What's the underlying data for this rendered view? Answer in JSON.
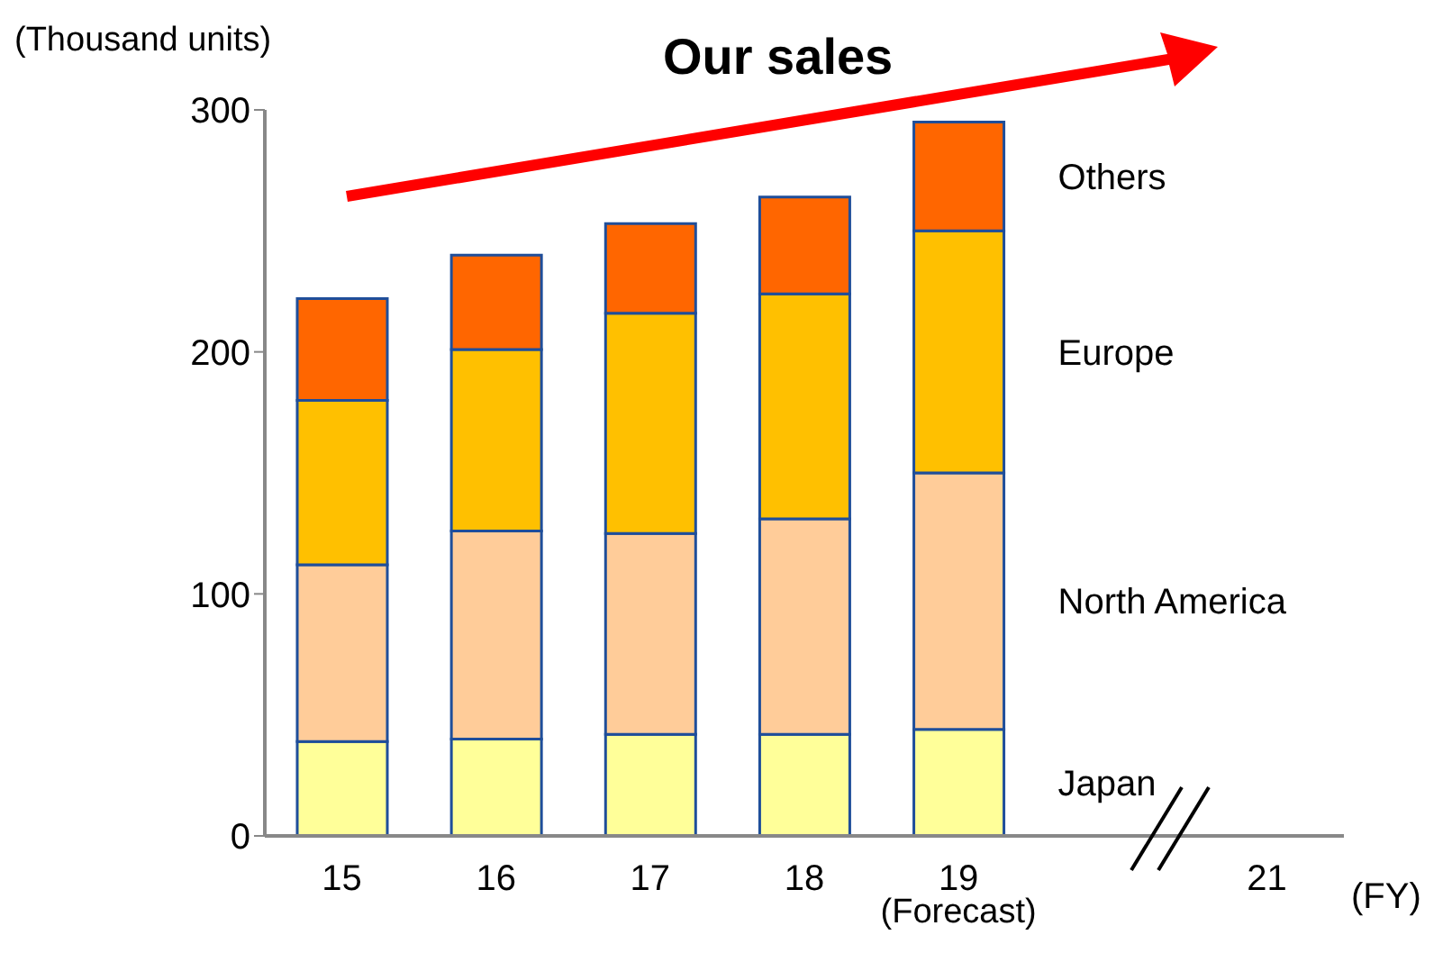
{
  "chart_data": {
    "type": "bar",
    "title": "Our sales",
    "ylabel": "(Thousand units)",
    "xlabel": "(FY)",
    "stacked": true,
    "categories": [
      "15",
      "16",
      "17",
      "18",
      "19",
      null,
      "21"
    ],
    "series": [
      {
        "name": "Japan",
        "color": "#ffff99",
        "values": [
          39,
          40,
          42,
          42,
          44,
          null,
          null
        ]
      },
      {
        "name": "North America",
        "color": "#ffcc99",
        "values": [
          73,
          86,
          83,
          89,
          106,
          null,
          null
        ]
      },
      {
        "name": "Europe",
        "color": "#ffc000",
        "values": [
          68,
          75,
          91,
          93,
          100,
          null,
          null
        ]
      },
      {
        "name": "Others",
        "color": "#ff6600",
        "values": [
          42,
          39,
          37,
          40,
          45,
          null,
          null
        ]
      }
    ],
    "ylim": [
      0,
      300
    ],
    "yticks": [
      0,
      100,
      200,
      300
    ],
    "annotations": [
      "(Forecast)"
    ]
  }
}
